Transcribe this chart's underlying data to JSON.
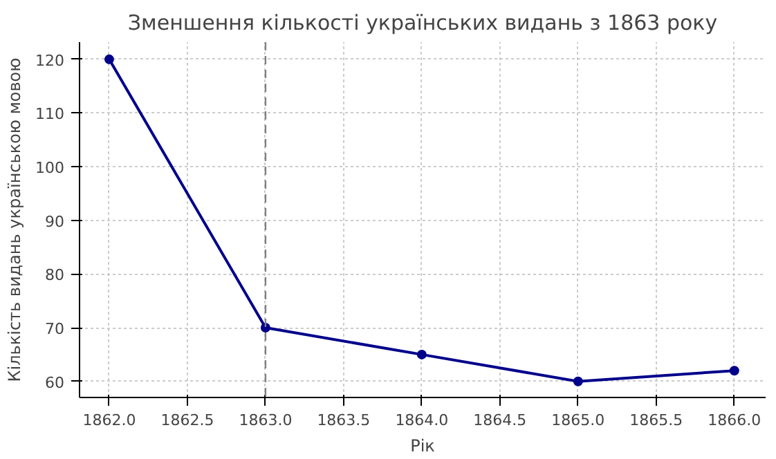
{
  "chart_data": {
    "type": "line",
    "title": "Зменшення кількості українських видань з 1863 року",
    "xlabel": "Рік",
    "ylabel": "Кількість видань українською мовою",
    "x": [
      1862,
      1863,
      1864,
      1865,
      1866
    ],
    "series": [
      {
        "color": "#00008b",
        "values": [
          120,
          70,
          65,
          60,
          62
        ]
      }
    ],
    "xlim": [
      1861.81,
      1866.2
    ],
    "ylim": [
      57,
      123.2
    ],
    "xticks": [
      {
        "value": 1862,
        "label": "1862.0"
      },
      {
        "value": 1862.5,
        "label": "1862.5"
      },
      {
        "value": 1863,
        "label": "1863.0"
      },
      {
        "value": 1863.5,
        "label": "1863.5"
      },
      {
        "value": 1864,
        "label": "1864.0"
      },
      {
        "value": 1864.5,
        "label": "1864.5"
      },
      {
        "value": 1865,
        "label": "1865.0"
      },
      {
        "value": 1865.5,
        "label": "1865.5"
      },
      {
        "value": 1866,
        "label": "1866.0"
      }
    ],
    "yticks": [
      60,
      70,
      80,
      90,
      100,
      110,
      120
    ],
    "ref_lines": [
      {
        "axis": "x",
        "value": 1863,
        "color": "#808080",
        "line_style": "dashed"
      }
    ],
    "grid": true,
    "marker": "circle",
    "line_style": "solid"
  }
}
